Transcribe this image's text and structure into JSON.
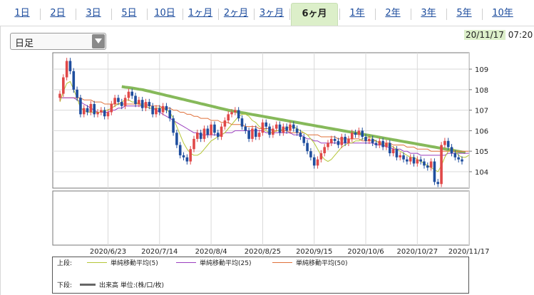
{
  "tabs": [
    {
      "label": "1日",
      "active": false
    },
    {
      "label": "2日",
      "active": false
    },
    {
      "label": "3日",
      "active": false
    },
    {
      "label": "5日",
      "active": false
    },
    {
      "label": "10日",
      "active": false
    },
    {
      "label": "1ヶ月",
      "active": false
    },
    {
      "label": "2ヶ月",
      "active": false
    },
    {
      "label": "3ヶ月",
      "active": false
    },
    {
      "label": "6ヶ月",
      "active": true
    },
    {
      "label": "1年",
      "active": false
    },
    {
      "label": "2年",
      "active": false
    },
    {
      "label": "3年",
      "active": false
    },
    {
      "label": "5年",
      "active": false
    },
    {
      "label": "10年",
      "active": false
    }
  ],
  "period_select": {
    "value": "日足",
    "icon": "chevron-down-icon"
  },
  "timestamp": {
    "date": "20/11/17",
    "time": "07:20"
  },
  "colors": {
    "accent_green": "#dcefc9",
    "up_candle": "#e04848",
    "down_candle": "#1f4e9e",
    "ma5": "#b5c637",
    "ma25": "#9b3fbf",
    "ma50": "#e0703a",
    "long_ma": "#86b95a"
  },
  "legend": {
    "upper_label": "上段:",
    "lower_label": "下段:",
    "ma5": "単純移動平均(5)",
    "ma25": "単純移動平均(25)",
    "ma50": "単純移動平均(50)",
    "volume": "出来高 単位:(株/口/枚)"
  },
  "chart_data": {
    "type": "candlestick",
    "y_ticks": [
      104,
      105,
      106,
      107,
      108,
      109
    ],
    "ylim": [
      103.2,
      109.8
    ],
    "x_tick_labels": [
      "2020/6/23",
      "2020/7/14",
      "2020/8/4",
      "2020/8/25",
      "2020/9/15",
      "2020/10/6",
      "2020/10/27",
      "2020/11/17"
    ],
    "x_ticks_index": [
      14,
      29,
      44,
      59,
      74,
      89,
      104,
      119
    ],
    "series": [
      {
        "name": "単純移動平均(5)",
        "color": "#b5c637",
        "values": [
          107.4,
          107.9,
          108.3,
          108.4,
          108.0,
          107.6,
          107.1,
          107.0,
          106.9,
          106.9,
          106.9,
          106.9,
          106.9,
          107.0,
          107.0,
          107.1,
          107.2,
          107.3,
          107.4,
          107.5,
          107.5,
          107.4,
          107.4,
          107.3,
          107.2,
          107.2,
          107.1,
          107.1,
          107.1,
          107.1,
          107.1,
          107.0,
          106.9,
          106.6,
          106.2,
          105.8,
          105.4,
          105.1,
          104.9,
          104.8,
          104.8,
          104.9,
          105.1,
          105.3,
          105.5,
          105.6,
          105.7,
          105.8,
          105.9,
          106.1,
          106.3,
          106.5,
          106.7,
          106.8,
          106.8,
          106.7,
          106.5,
          106.4,
          106.2,
          106.1,
          106.0,
          105.9,
          105.9,
          106.0,
          106.0,
          106.1,
          106.1,
          106.2,
          106.2,
          106.1,
          106.0,
          105.9,
          105.8,
          105.6,
          105.4,
          105.1,
          104.8,
          104.6,
          104.5,
          104.6,
          104.8,
          105.0,
          105.2,
          105.3,
          105.4,
          105.4,
          105.5,
          105.5,
          105.6,
          105.6,
          105.7,
          105.6,
          105.5,
          105.4,
          105.3,
          105.3,
          105.3,
          105.2,
          105.1,
          105.0,
          104.9,
          104.8,
          104.7,
          104.7,
          104.6,
          104.5,
          104.4,
          104.3,
          104.2,
          104.1,
          104.0,
          104.3,
          104.7,
          105.0,
          105.2,
          105.0,
          104.8,
          104.7,
          104.7,
          104.8
        ]
      },
      {
        "name": "単純移動平均(25)",
        "color": "#9b3fbf",
        "values": [
          107.6,
          107.6,
          107.6,
          107.6,
          107.6,
          107.5,
          107.4,
          107.3,
          107.2,
          107.1,
          107.0,
          106.9,
          106.9,
          106.9,
          106.9,
          107.0,
          107.0,
          107.1,
          107.1,
          107.2,
          107.2,
          107.2,
          107.2,
          107.2,
          107.2,
          107.2,
          107.1,
          107.1,
          107.0,
          106.9,
          106.8,
          106.7,
          106.6,
          106.5,
          106.4,
          106.3,
          106.2,
          106.1,
          106.0,
          105.9,
          105.9,
          105.8,
          105.8,
          105.8,
          105.8,
          105.8,
          105.8,
          105.8,
          105.9,
          105.9,
          105.9,
          106.0,
          106.0,
          106.0,
          106.0,
          106.0,
          106.0,
          106.0,
          106.0,
          106.0,
          105.9,
          105.9,
          105.9,
          105.9,
          105.9,
          105.9,
          105.9,
          105.9,
          105.8,
          105.8,
          105.8,
          105.7,
          105.6,
          105.6,
          105.5,
          105.5,
          105.4,
          105.4,
          105.4,
          105.4,
          105.4,
          105.4,
          105.4,
          105.4,
          105.4,
          105.4,
          105.4,
          105.4,
          105.4,
          105.4,
          105.4,
          105.4,
          105.3,
          105.3,
          105.3,
          105.2,
          105.2,
          105.1,
          105.1,
          105.1,
          105.0,
          105.0,
          104.9,
          104.9,
          104.9,
          104.8,
          104.8,
          104.8,
          104.8,
          104.8,
          104.8,
          104.8,
          104.8,
          104.9,
          104.9,
          104.9,
          104.9,
          104.9,
          104.9,
          104.9
        ]
      },
      {
        "name": "単純移動平均(50)",
        "color": "#e0703a",
        "values": [
          107.6,
          107.6,
          107.6,
          107.6,
          107.6,
          107.6,
          107.6,
          107.5,
          107.5,
          107.5,
          107.4,
          107.4,
          107.4,
          107.3,
          107.3,
          107.3,
          107.3,
          107.3,
          107.3,
          107.3,
          107.3,
          107.3,
          107.3,
          107.3,
          107.3,
          107.3,
          107.2,
          107.2,
          107.2,
          107.2,
          107.1,
          107.1,
          107.1,
          107.0,
          107.0,
          106.9,
          106.9,
          106.8,
          106.8,
          106.7,
          106.7,
          106.6,
          106.6,
          106.6,
          106.5,
          106.5,
          106.5,
          106.4,
          106.4,
          106.4,
          106.3,
          106.3,
          106.3,
          106.3,
          106.2,
          106.2,
          106.2,
          106.2,
          106.1,
          106.1,
          106.1,
          106.1,
          106.0,
          106.0,
          106.0,
          106.0,
          106.0,
          105.9,
          105.9,
          105.9,
          105.9,
          105.9,
          105.8,
          105.8,
          105.8,
          105.8,
          105.7,
          105.7,
          105.7,
          105.7,
          105.7,
          105.6,
          105.6,
          105.6,
          105.6,
          105.6,
          105.6,
          105.6,
          105.5,
          105.5,
          105.5,
          105.5,
          105.5,
          105.4,
          105.4,
          105.4,
          105.4,
          105.3,
          105.3,
          105.3,
          105.3,
          105.2,
          105.2,
          105.2,
          105.1,
          105.1,
          105.1,
          105.1,
          105.0,
          105.0,
          105.0,
          105.0,
          105.0,
          105.0,
          105.0,
          105.0,
          105.0,
          105.0,
          105.0,
          105.0
        ]
      },
      {
        "name": "",
        "color": "#86b95a",
        "start_index": 18,
        "values": [
          108.15,
          108.12,
          108.1,
          108.08,
          108.05,
          108.02,
          108.0,
          107.96,
          107.92,
          107.88,
          107.84,
          107.8,
          107.76,
          107.72,
          107.68,
          107.64,
          107.6,
          107.56,
          107.52,
          107.48,
          107.44,
          107.4,
          107.36,
          107.32,
          107.28,
          107.24,
          107.2,
          107.16,
          107.12,
          107.08,
          107.04,
          107.0,
          106.97,
          106.94,
          106.91,
          106.88,
          106.85,
          106.82,
          106.79,
          106.76,
          106.73,
          106.7,
          106.67,
          106.64,
          106.61,
          106.58,
          106.55,
          106.52,
          106.49,
          106.46,
          106.43,
          106.4,
          106.37,
          106.34,
          106.31,
          106.28,
          106.25,
          106.22,
          106.19,
          106.16,
          106.13,
          106.1,
          106.07,
          106.04,
          106.01,
          105.98,
          105.95,
          105.92,
          105.89,
          105.86,
          105.83,
          105.8,
          105.77,
          105.74,
          105.71,
          105.68,
          105.65,
          105.62,
          105.59,
          105.56,
          105.53,
          105.5,
          105.47,
          105.44,
          105.41,
          105.38,
          105.35,
          105.32,
          105.29,
          105.26,
          105.23,
          105.2,
          105.17,
          105.14,
          105.11,
          105.08,
          105.05,
          105.02,
          104.99,
          104.96,
          104.93
        ]
      }
    ],
    "candles_close": [
      107.8,
      108.6,
      109.4,
      108.9,
      108.0,
      107.6,
      106.8,
      107.1,
      106.9,
      107.3,
      106.8,
      106.9,
      107.0,
      106.7,
      106.9,
      107.3,
      107.6,
      107.4,
      107.2,
      107.6,
      107.9,
      107.7,
      107.3,
      107.5,
      107.1,
      107.4,
      107.2,
      106.8,
      107.1,
      106.9,
      107.2,
      107.0,
      106.6,
      105.9,
      105.3,
      104.8,
      104.7,
      104.5,
      105.1,
      105.6,
      105.9,
      105.6,
      106.1,
      105.8,
      106.3,
      105.9,
      105.7,
      106.2,
      106.5,
      106.8,
      106.9,
      107.0,
      106.6,
      106.2,
      106.0,
      105.6,
      106.1,
      105.7,
      105.9,
      106.4,
      106.2,
      105.8,
      106.1,
      106.3,
      105.9,
      106.2,
      106.0,
      106.3,
      106.1,
      105.9,
      105.7,
      105.4,
      105.0,
      104.7,
      104.3,
      104.6,
      104.9,
      105.2,
      105.4,
      105.6,
      105.5,
      105.3,
      105.7,
      105.4,
      105.6,
      105.9,
      105.8,
      106.0,
      105.7,
      105.5,
      105.6,
      105.4,
      105.3,
      105.5,
      105.2,
      105.4,
      104.9,
      105.1,
      104.7,
      104.8,
      104.6,
      104.5,
      104.7,
      104.4,
      104.6,
      104.5,
      104.3,
      104.2,
      104.5,
      103.5,
      103.4,
      105.3,
      105.5,
      105.2,
      104.9,
      104.7,
      104.6,
      104.5
    ]
  }
}
